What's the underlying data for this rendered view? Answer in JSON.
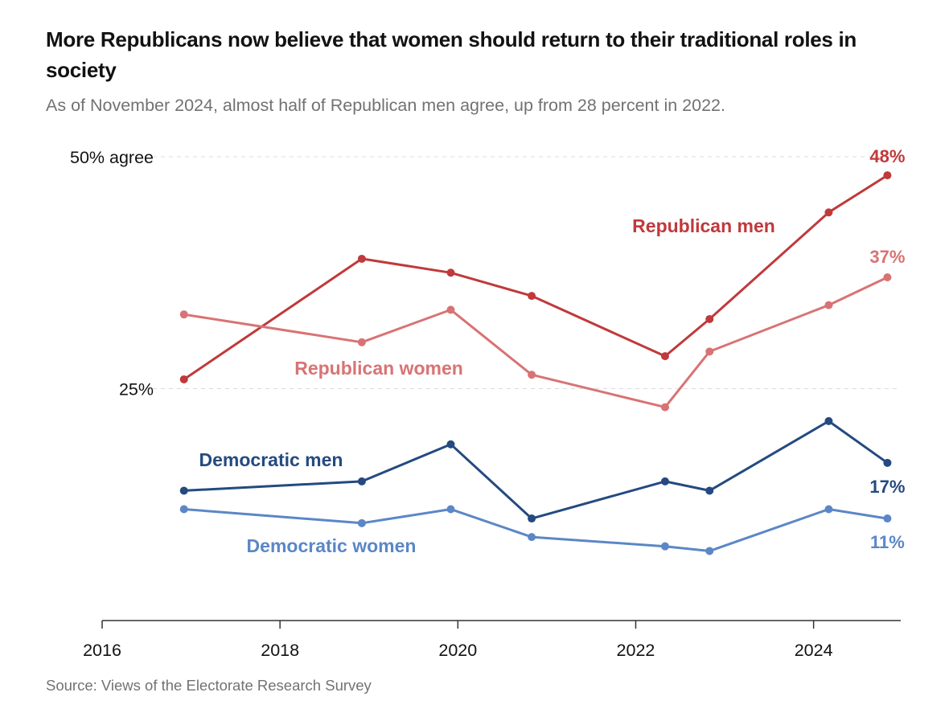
{
  "title": "More Republicans now believe that women should return to their traditional roles in society",
  "subtitle": "As of November 2024, almost half of Republican men agree, up from 28 percent in 2022.",
  "source": "Source: Views of the Electorate Research Survey",
  "chart_data": {
    "type": "line",
    "title": "More Republicans now believe that women should return to their traditional roles in society",
    "subtitle": "As of November 2024, almost half of Republican men agree, up from 28 percent in 2022.",
    "xlabel": "",
    "ylabel": "",
    "xlim": [
      2016,
      2024.98
    ],
    "ylim": [
      0,
      50
    ],
    "x_ticks": [
      2016,
      2018,
      2020,
      2022,
      2024
    ],
    "x_tick_labels": [
      "2016",
      "2018",
      "2020",
      "2022",
      "2024"
    ],
    "y_ticks": [
      25,
      50
    ],
    "y_tick_labels": [
      "25%",
      "50% agree"
    ],
    "grid": "horizontal dashed",
    "legend": "direct labels",
    "series": [
      {
        "name": "Republican men",
        "color": "#c0393b",
        "x": [
          2016.92,
          2018.92,
          2019.92,
          2020.83,
          2022.33,
          2022.83,
          2024.17,
          2024.83
        ],
        "values": [
          26,
          39,
          37.5,
          35,
          28.5,
          32.5,
          44,
          48
        ],
        "end_label": "48%"
      },
      {
        "name": "Republican women",
        "color": "#d87374",
        "x": [
          2016.92,
          2018.92,
          2019.92,
          2020.83,
          2022.33,
          2022.83,
          2024.17,
          2024.83
        ],
        "values": [
          33,
          30,
          33.5,
          26.5,
          23,
          29,
          34,
          37
        ],
        "end_label": "37%"
      },
      {
        "name": "Democratic men",
        "color": "#244a80",
        "x": [
          2016.92,
          2018.92,
          2019.92,
          2020.83,
          2022.33,
          2022.83,
          2024.17,
          2024.83
        ],
        "values": [
          14,
          15,
          19,
          11,
          15,
          14,
          21.5,
          17
        ],
        "end_label": "17%"
      },
      {
        "name": "Democratic women",
        "color": "#5b87c6",
        "x": [
          2016.92,
          2018.92,
          2019.92,
          2020.83,
          2022.33,
          2022.83,
          2024.17,
          2024.83
        ],
        "values": [
          12,
          10.5,
          12,
          9,
          8,
          7.5,
          12,
          11
        ],
        "end_label": "11%"
      }
    ]
  }
}
